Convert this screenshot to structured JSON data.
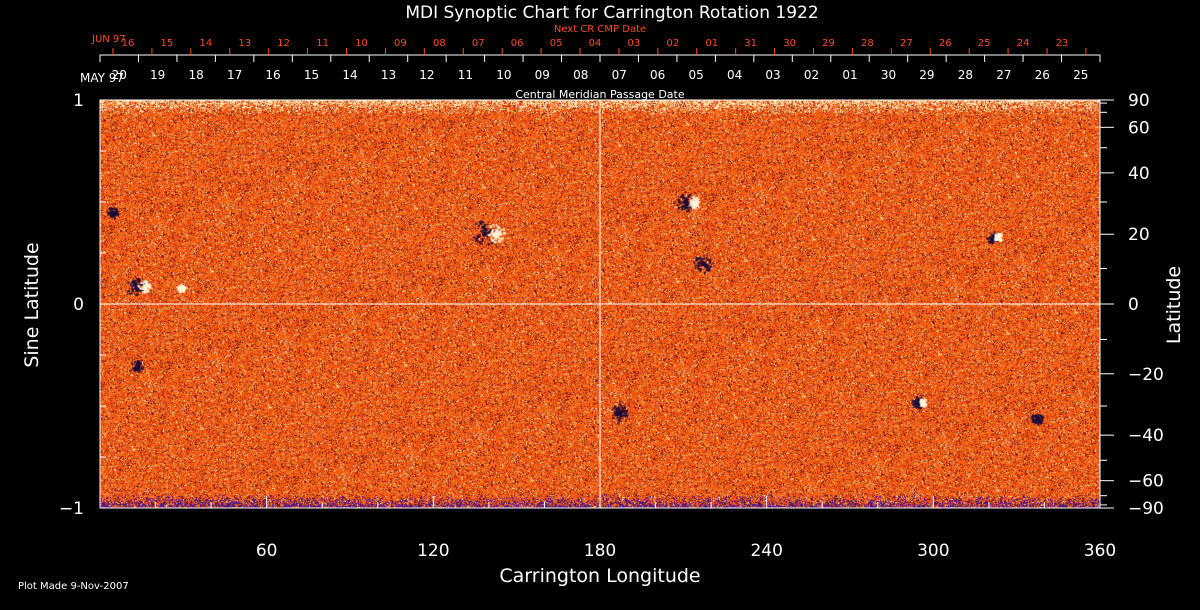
{
  "chart_data": {
    "type": "heatmap",
    "title": "MDI Synoptic Chart for Carrington Rotation 1922",
    "xlabel": "Carrington Longitude",
    "ylabel_left": "Sine Latitude",
    "ylabel_right": "Latitude",
    "xlim": [
      0,
      360
    ],
    "ylim": [
      -1,
      1
    ],
    "x_ticks": [
      60,
      120,
      180,
      240,
      300,
      360
    ],
    "y_ticks_left": [
      1,
      0,
      -1
    ],
    "y_ticks_right": [
      90,
      60,
      40,
      20,
      0,
      -20,
      -40,
      -60,
      -90
    ],
    "top_axis_label": "Central Meridian Passage Date",
    "top_months": {
      "inner": "MAY 97",
      "outer": "JUN 97"
    },
    "next_cr_label": "Next CR CMP Date",
    "cmp_dates": [
      "20",
      "19",
      "18",
      "17",
      "16",
      "15",
      "14",
      "13",
      "12",
      "11",
      "10",
      "09",
      "08",
      "07",
      "06",
      "05",
      "04",
      "03",
      "02",
      "01",
      "30",
      "29",
      "28",
      "27",
      "26",
      "25"
    ],
    "next_cr_dates": [
      "16",
      "15",
      "14",
      "13",
      "12",
      "11",
      "10",
      "09",
      "08",
      "07",
      "06",
      "05",
      "04",
      "03",
      "02",
      "01",
      "31",
      "30",
      "29",
      "28",
      "27",
      "26",
      "25",
      "24",
      "23"
    ],
    "colors": {
      "background": "#000000",
      "field": "#e84a10",
      "next_cr": "#ff4a20",
      "axes": "#ffffff"
    },
    "active_regions": [
      {
        "lon": 140,
        "sinlat": 0.35,
        "polarity": "mixed",
        "size": "large"
      },
      {
        "lon": 212,
        "sinlat": 0.5,
        "polarity": "mixed",
        "size": "medium"
      },
      {
        "lon": 218,
        "sinlat": 0.2,
        "polarity": "negative",
        "size": "medium"
      },
      {
        "lon": 322,
        "sinlat": 0.33,
        "polarity": "mixed",
        "size": "small"
      },
      {
        "lon": 14,
        "sinlat": 0.09,
        "polarity": "mixed",
        "size": "medium"
      },
      {
        "lon": 5,
        "sinlat": 0.45,
        "polarity": "negative",
        "size": "small"
      },
      {
        "lon": 28,
        "sinlat": 0.08,
        "polarity": "positive",
        "size": "small"
      },
      {
        "lon": 188,
        "sinlat": -0.53,
        "polarity": "negative",
        "size": "medium"
      },
      {
        "lon": 295,
        "sinlat": -0.48,
        "polarity": "mixed",
        "size": "small"
      },
      {
        "lon": 338,
        "sinlat": -0.56,
        "polarity": "negative",
        "size": "small"
      },
      {
        "lon": 14,
        "sinlat": -0.3,
        "polarity": "negative",
        "size": "small"
      }
    ]
  },
  "footer": {
    "plot_made": "Plot Made  9-Nov-2007"
  }
}
